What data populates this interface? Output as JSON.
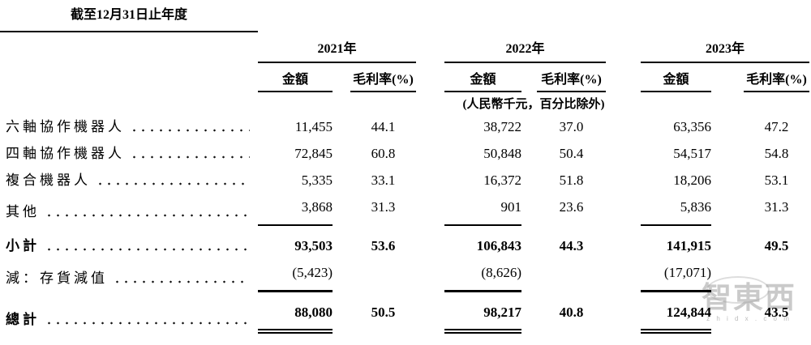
{
  "title": "截至12月31日止年度",
  "unit_note": "(人民幣千元，百分比除外)",
  "years": [
    "2021年",
    "2022年",
    "2023年"
  ],
  "col_amount": "金額",
  "col_margin": "毛利率(%)",
  "rows": [
    {
      "label": "六軸協作機器人",
      "a1": "11,455",
      "m1": "44.1",
      "a2": "38,722",
      "m2": "37.0",
      "a3": "63,356",
      "m3": "47.2",
      "bold": false,
      "rule": ""
    },
    {
      "label": "四軸協作機器人",
      "a1": "72,845",
      "m1": "60.8",
      "a2": "50,848",
      "m2": "50.4",
      "a3": "54,517",
      "m3": "54.8",
      "bold": false,
      "rule": ""
    },
    {
      "label": "複合機器人",
      "a1": "5,335",
      "m1": "33.1",
      "a2": "16,372",
      "m2": "51.8",
      "a3": "18,206",
      "m3": "53.1",
      "bold": false,
      "rule": ""
    },
    {
      "label": "其他",
      "a1": "3,868",
      "m1": "31.3",
      "a2": "901",
      "m2": "23.6",
      "a3": "5,836",
      "m3": "31.3",
      "bold": false,
      "rule": "single"
    },
    {
      "label": "小計",
      "a1": "93,503",
      "m1": "53.6",
      "a2": "106,843",
      "m2": "44.3",
      "a3": "141,915",
      "m3": "49.5",
      "bold": true,
      "rule": ""
    },
    {
      "label": "減：存貨減值",
      "a1": "(5,423)",
      "m1": "",
      "a2": "(8,626)",
      "m2": "",
      "a3": "(17,071)",
      "m3": "",
      "bold": false,
      "rule": "thick"
    },
    {
      "label": "總計",
      "a1": "88,080",
      "m1": "50.5",
      "a2": "98,217",
      "m2": "40.8",
      "a3": "124,844",
      "m3": "43.5",
      "bold": true,
      "rule": "double"
    }
  ],
  "watermark": {
    "text": "智東西",
    "subtext": "z h i d x . c o m"
  }
}
